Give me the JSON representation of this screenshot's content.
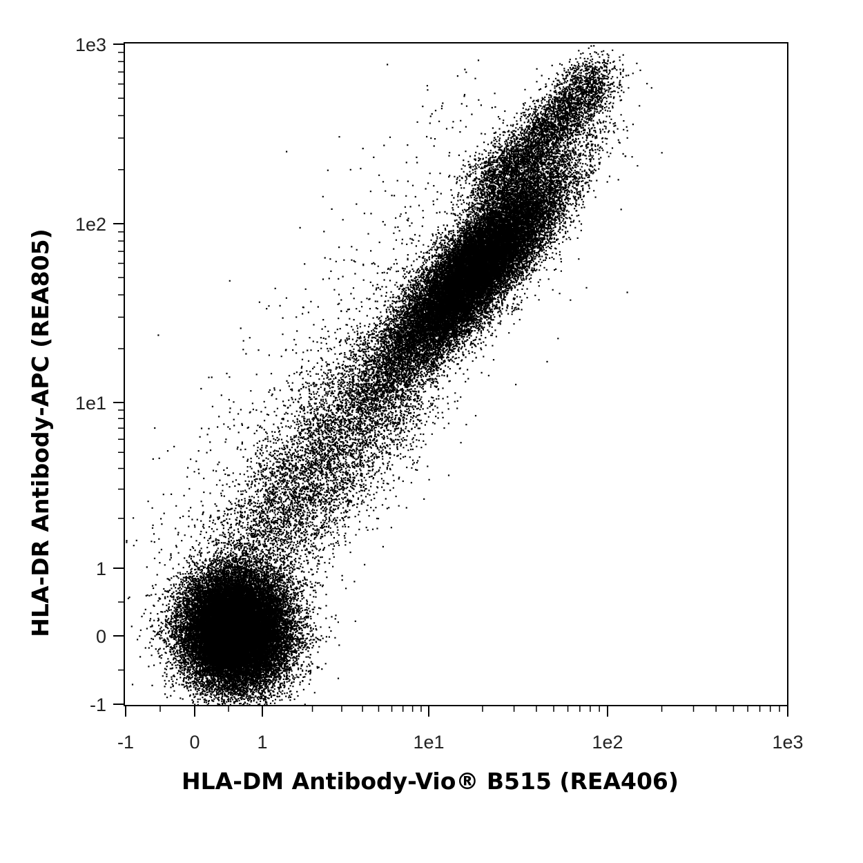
{
  "chart_data": {
    "type": "scatter",
    "title": "",
    "xlabel": "HLA-DM Antibody-Vio® B515 (REA406)",
    "ylabel": "HLA-DR Antibody-APC (REA805)",
    "x_scale": "biexponential",
    "y_scale": "biexponential",
    "xlim": [
      -1,
      1000
    ],
    "ylim": [
      -1,
      1000
    ],
    "x_ticks": [
      {
        "value": -1,
        "label": "-1"
      },
      {
        "value": 0,
        "label": "0"
      },
      {
        "value": 1,
        "label": "1"
      },
      {
        "value": 10,
        "label": "1e1"
      },
      {
        "value": 100,
        "label": "1e2"
      },
      {
        "value": 1000,
        "label": "1e3"
      }
    ],
    "y_ticks": [
      {
        "value": -1,
        "label": "-1"
      },
      {
        "value": 0,
        "label": "0"
      },
      {
        "value": 1,
        "label": "1"
      },
      {
        "value": 10,
        "label": "1e1"
      },
      {
        "value": 100,
        "label": "1e2"
      },
      {
        "value": 1000,
        "label": "1e3"
      }
    ],
    "grid": false,
    "point_color": "#000000",
    "populations": [
      {
        "x_center": 0.6,
        "y_center": 0.1,
        "description": "double-negative cluster"
      },
      {
        "x_center": 18,
        "y_center": 55,
        "description": "double-positive cluster, extends diagonally to ~1e3"
      }
    ]
  }
}
